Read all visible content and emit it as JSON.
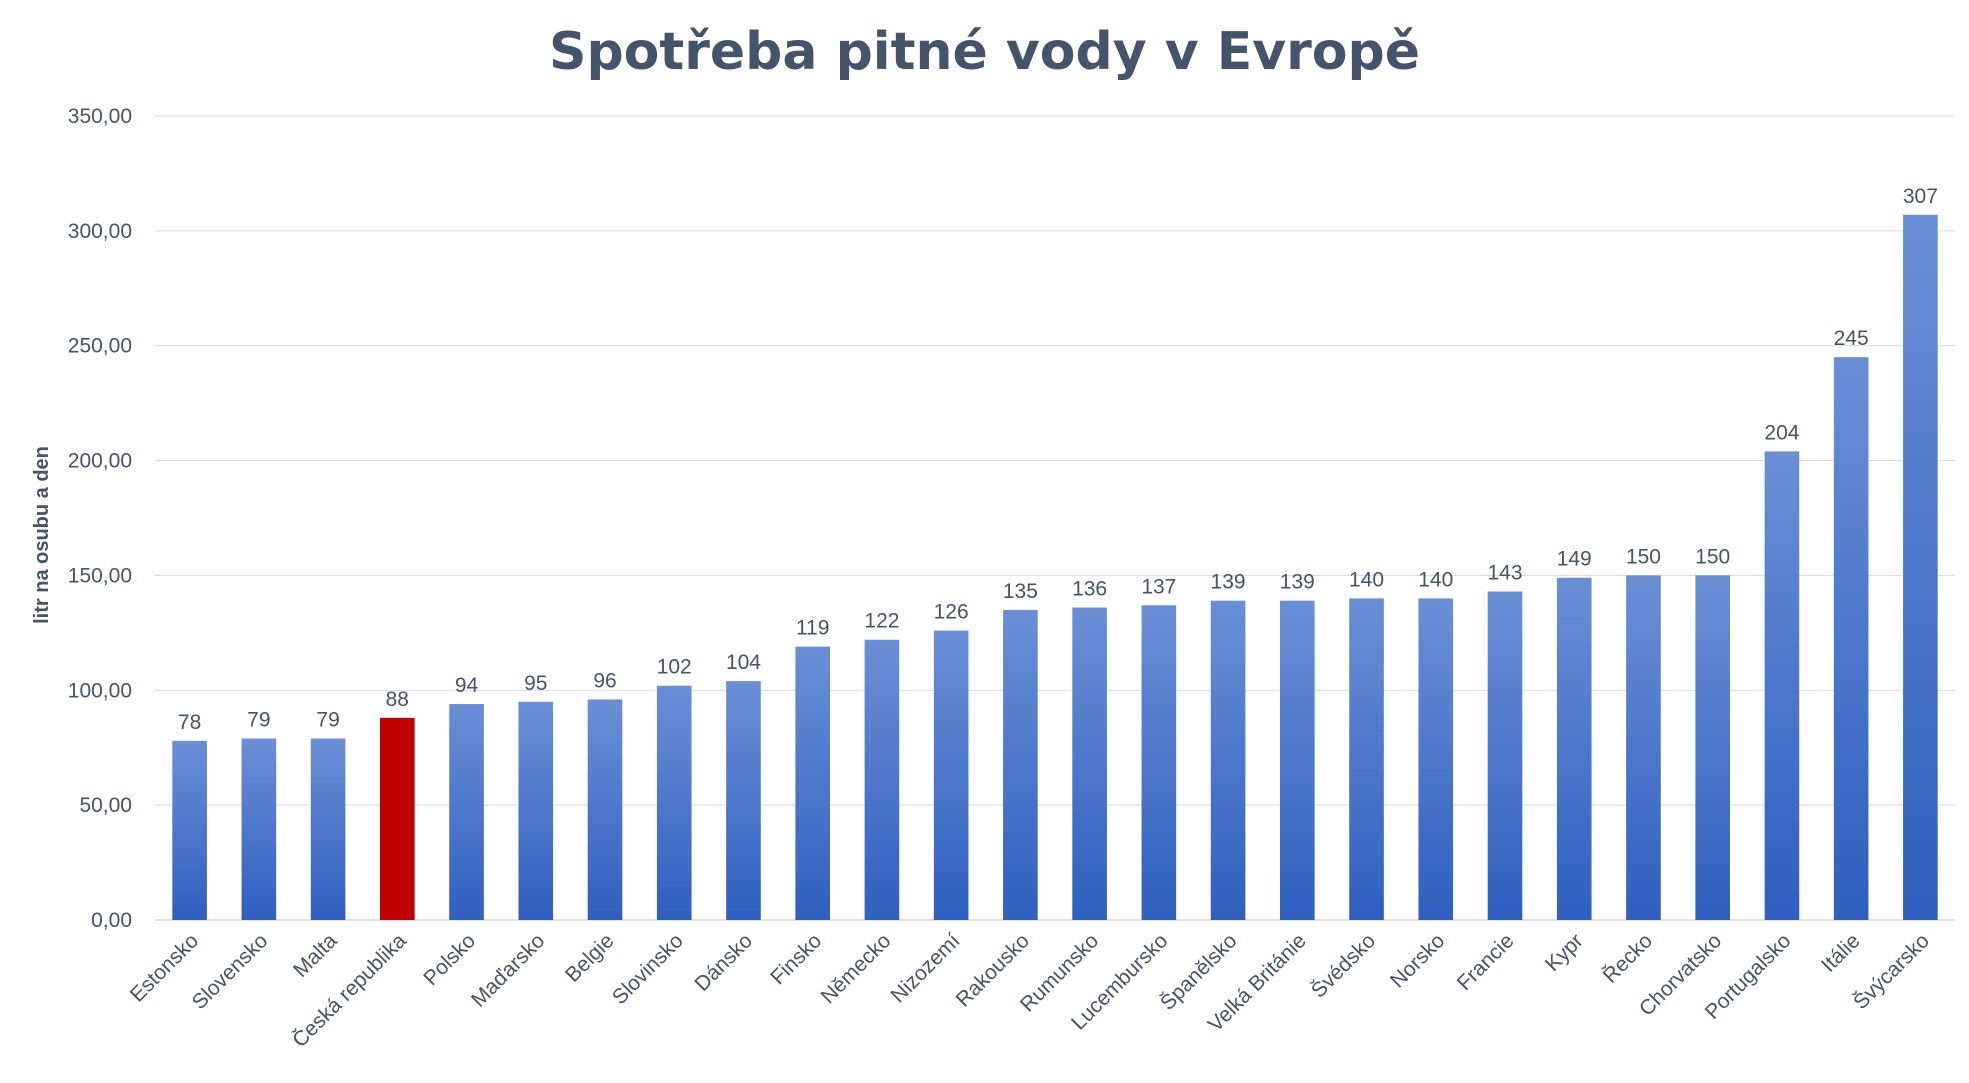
{
  "chart_data": {
    "type": "bar",
    "title": "Spotřeba pitné vody v Evropě",
    "xlabel": "",
    "ylabel": "litr na osubu a den",
    "ylim": [
      0,
      350
    ],
    "yticks": [
      "0,00",
      "50,00",
      "100,00",
      "150,00",
      "200,00",
      "250,00",
      "300,00",
      "350,00"
    ],
    "grid": true,
    "categories": [
      "Estonsko",
      "Slovensko",
      "Malta",
      "Česká republika",
      "Polsko",
      "Maďarsko",
      "Belgie",
      "Slovinsko",
      "Dánsko",
      "Finsko",
      "Německo",
      "Nizozemí",
      "Rakousko",
      "Rumunsko",
      "Lucembursko",
      "Španělsko",
      "Velká Británie",
      "Švédsko",
      "Norsko",
      "Francie",
      "Kypr",
      "Řecko",
      "Chorvatsko",
      "Portugalsko",
      "Itálie",
      "Švýcarsko"
    ],
    "values": [
      78,
      79,
      79,
      88,
      94,
      95,
      96,
      102,
      104,
      119,
      122,
      126,
      135,
      136,
      137,
      139,
      139,
      140,
      140,
      143,
      149,
      150,
      150,
      204,
      245,
      307
    ],
    "highlight_category": "Česká republika",
    "colors": {
      "bar_top": "#6a8fd6",
      "bar_bottom": "#2f5fbf",
      "highlight": "#c00000",
      "grid": "#d9d9d9",
      "text": "#44546a"
    }
  }
}
